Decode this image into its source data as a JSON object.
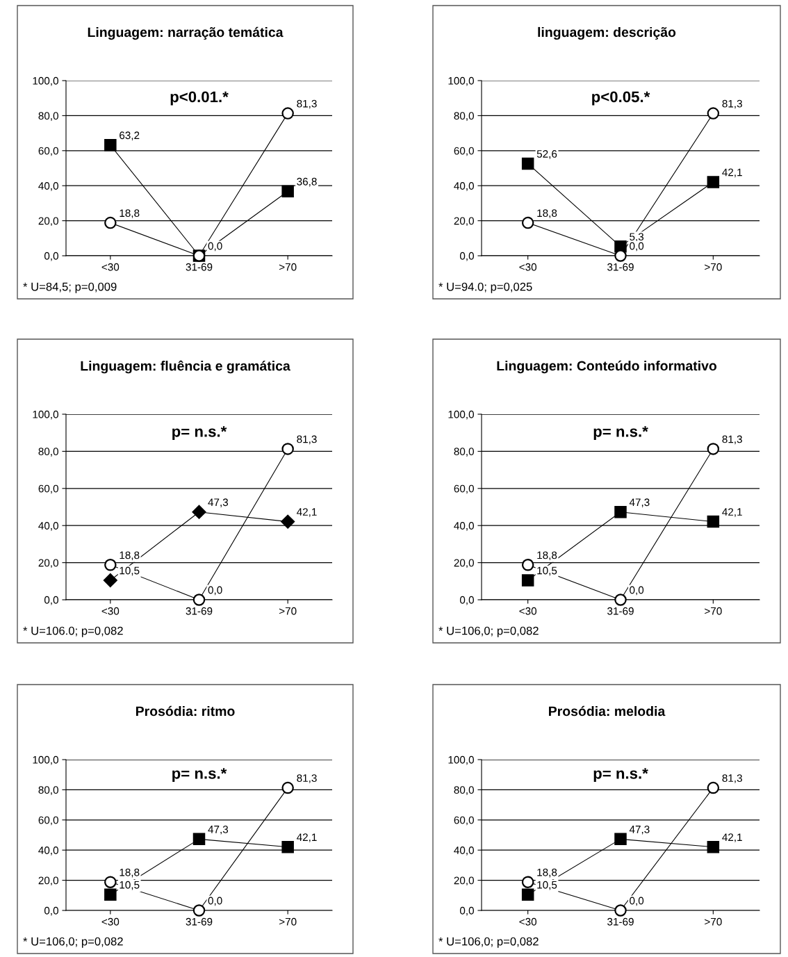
{
  "chart_data": [
    {
      "type": "line",
      "title": "Linguagem: narração temática",
      "categories": [
        "<30",
        "31-69",
        ">70"
      ],
      "ylim": [
        0,
        100
      ],
      "yticks": [
        {
          "value": 0,
          "label": "0,0"
        },
        {
          "value": 20,
          "label": "20,0"
        },
        {
          "value": 40,
          "label": "40,0"
        },
        {
          "value": 60,
          "label": "60,0"
        },
        {
          "value": 80,
          "label": "80,0"
        },
        {
          "value": 100,
          "label": "100,0"
        }
      ],
      "grid": "y",
      "legend": false,
      "series": [
        {
          "color": "#000000",
          "marker": "square",
          "values": [
            63.2,
            0.0,
            36.8
          ],
          "value_labels": [
            "63,2",
            null,
            "36,8"
          ]
        },
        {
          "color": "#000000",
          "marker": "circle",
          "values": [
            18.8,
            0.0,
            81.3
          ],
          "value_labels": [
            "18,8",
            "0,0",
            "81,3"
          ]
        }
      ],
      "annotations": [
        "p<0.01.*",
        "* U=84,5; p=0,009"
      ]
    },
    {
      "type": "line",
      "title": "linguagem: descrição",
      "categories": [
        "<30",
        "31-69",
        ">70"
      ],
      "ylim": [
        0,
        100
      ],
      "yticks": [
        {
          "value": 0,
          "label": "0,0"
        },
        {
          "value": 20,
          "label": "20,0"
        },
        {
          "value": 40,
          "label": "40,0"
        },
        {
          "value": 60,
          "label": "60,0"
        },
        {
          "value": 80,
          "label": "80,0"
        },
        {
          "value": 100,
          "label": "100,0"
        }
      ],
      "grid": "y",
      "legend": false,
      "series": [
        {
          "color": "#000000",
          "marker": "square",
          "values": [
            52.6,
            5.3,
            42.1
          ],
          "value_labels": [
            "52,6",
            "5,3",
            "42,1"
          ]
        },
        {
          "color": "#000000",
          "marker": "circle",
          "values": [
            18.8,
            0.0,
            81.3
          ],
          "value_labels": [
            "18,8",
            "0,0",
            "81,3"
          ]
        }
      ],
      "annotations": [
        "p<0.05.*",
        "* U=94.0; p=0,025"
      ]
    },
    {
      "type": "line",
      "title": "Linguagem: fluência e gramática",
      "categories": [
        "<30",
        "31-69",
        ">70"
      ],
      "ylim": [
        0,
        100
      ],
      "yticks": [
        {
          "value": 0,
          "label": "0,0"
        },
        {
          "value": 20,
          "label": "20,0"
        },
        {
          "value": 40,
          "label": "40,0"
        },
        {
          "value": 60,
          "label": "60,0"
        },
        {
          "value": 80,
          "label": "80,0"
        },
        {
          "value": 100,
          "label": "100,0"
        }
      ],
      "grid": "y",
      "legend": false,
      "series": [
        {
          "color": "#000000",
          "marker": "diamond",
          "values": [
            10.5,
            47.3,
            42.1
          ],
          "value_labels": [
            "10,5",
            "47,3",
            "42,1"
          ]
        },
        {
          "color": "#000000",
          "marker": "circle",
          "values": [
            18.8,
            0.0,
            81.3
          ],
          "value_labels": [
            "18,8",
            "0,0",
            "81,3"
          ]
        }
      ],
      "annotations": [
        "p= n.s.*",
        "* U=106.0; p=0,082"
      ]
    },
    {
      "type": "line",
      "title": "Linguagem: Conteúdo informativo",
      "categories": [
        "<30",
        "31-69",
        ">70"
      ],
      "ylim": [
        0,
        100
      ],
      "yticks": [
        {
          "value": 0,
          "label": "0,0"
        },
        {
          "value": 20,
          "label": "20,0"
        },
        {
          "value": 40,
          "label": "40,0"
        },
        {
          "value": 60,
          "label": "60,0"
        },
        {
          "value": 80,
          "label": "80,0"
        },
        {
          "value": 100,
          "label": "100,0"
        }
      ],
      "grid": "y",
      "legend": false,
      "series": [
        {
          "color": "#000000",
          "marker": "square",
          "values": [
            10.5,
            47.3,
            42.1
          ],
          "value_labels": [
            "10,5",
            "47,3",
            "42,1"
          ]
        },
        {
          "color": "#000000",
          "marker": "circle",
          "values": [
            18.8,
            0.0,
            81.3
          ],
          "value_labels": [
            "18,8",
            "0,0",
            "81,3"
          ]
        }
      ],
      "annotations": [
        "p= n.s.*",
        "* U=106,0; p=0,082"
      ]
    },
    {
      "type": "line",
      "title": "Prosódia: ritmo",
      "categories": [
        "<30",
        "31-69",
        ">70"
      ],
      "ylim": [
        0,
        100
      ],
      "yticks": [
        {
          "value": 0,
          "label": "0,0"
        },
        {
          "value": 20,
          "label": "20,0"
        },
        {
          "value": 40,
          "label": "40,0"
        },
        {
          "value": 60,
          "label": "60,0"
        },
        {
          "value": 80,
          "label": "80,0"
        },
        {
          "value": 100,
          "label": "100,0"
        }
      ],
      "grid": "y",
      "legend": false,
      "series": [
        {
          "color": "#000000",
          "marker": "square",
          "values": [
            10.5,
            47.3,
            42.1
          ],
          "value_labels": [
            "10,5",
            "47,3",
            "42,1"
          ]
        },
        {
          "color": "#000000",
          "marker": "circle",
          "values": [
            18.8,
            0.0,
            81.3
          ],
          "value_labels": [
            "18,8",
            "0,0",
            "81,3"
          ]
        }
      ],
      "annotations": [
        "p= n.s.*",
        "* U=106,0; p=0,082"
      ]
    },
    {
      "type": "line",
      "title": "Prosódia: melodia",
      "categories": [
        "<30",
        "31-69",
        ">70"
      ],
      "ylim": [
        0,
        100
      ],
      "yticks": [
        {
          "value": 0,
          "label": "0,0"
        },
        {
          "value": 20,
          "label": "20,0"
        },
        {
          "value": 40,
          "label": "40,0"
        },
        {
          "value": 60,
          "label": "60,0"
        },
        {
          "value": 80,
          "label": "80,0"
        },
        {
          "value": 100,
          "label": "100,0"
        }
      ],
      "grid": "y",
      "legend": false,
      "series": [
        {
          "color": "#000000",
          "marker": "square",
          "values": [
            10.5,
            47.3,
            42.1
          ],
          "value_labels": [
            "10,5",
            "47,3",
            "42,1"
          ]
        },
        {
          "color": "#000000",
          "marker": "circle",
          "values": [
            18.8,
            0.0,
            81.3
          ],
          "value_labels": [
            "18,8",
            "0,0",
            "81,3"
          ]
        }
      ],
      "annotations": [
        "p= n.s.*",
        "* U=106,0; p=0,082"
      ]
    }
  ]
}
